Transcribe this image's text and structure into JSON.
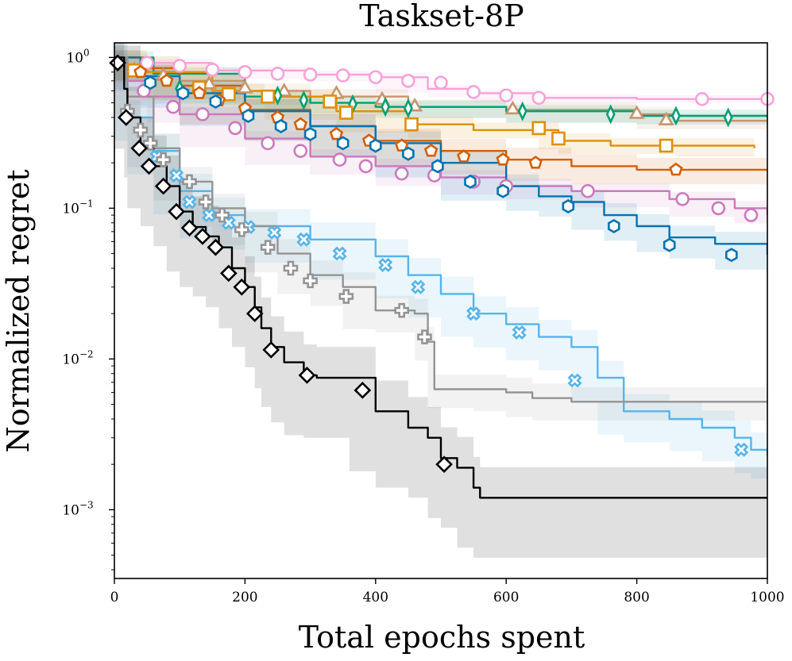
{
  "chart_data": {
    "type": "line",
    "title": "Taskset-8P",
    "xlabel": "Total epochs spent",
    "ylabel": "Normalized regret",
    "xlim": [
      0,
      1000
    ],
    "ylim": [
      0.00035,
      1.25
    ],
    "yscale": "log",
    "x_ticks": [
      0,
      200,
      400,
      600,
      800,
      1000
    ],
    "x_tick_labels": [
      "0",
      "200",
      "400",
      "600",
      "800",
      "1000"
    ],
    "y_ticks": [
      1,
      0.1,
      0.01,
      0.001
    ],
    "y_tick_labels": [
      {
        "base": "10",
        "exp": "0"
      },
      {
        "base": "10",
        "exp": "−1"
      },
      {
        "base": "10",
        "exp": "−2"
      },
      {
        "base": "10",
        "exp": "−3"
      }
    ],
    "legend": "none",
    "grid": false,
    "series": [
      {
        "name": "pink-circle",
        "color": "#f7a1d8",
        "marker": "circle",
        "band": 0.06,
        "points": [
          [
            0,
            1.0
          ],
          [
            50,
            0.92
          ],
          [
            150,
            0.82
          ],
          [
            300,
            0.77
          ],
          [
            400,
            0.74
          ],
          [
            480,
            0.62
          ],
          [
            550,
            0.58
          ],
          [
            650,
            0.54
          ],
          [
            800,
            0.53
          ],
          [
            1000,
            0.53
          ]
        ],
        "markers": [
          [
            50,
            0.92
          ],
          [
            100,
            0.88
          ],
          [
            150,
            0.83
          ],
          [
            200,
            0.8
          ],
          [
            250,
            0.78
          ],
          [
            300,
            0.77
          ],
          [
            350,
            0.76
          ],
          [
            400,
            0.74
          ],
          [
            450,
            0.7
          ],
          [
            500,
            0.68
          ],
          [
            550,
            0.59
          ],
          [
            600,
            0.56
          ],
          [
            650,
            0.54
          ],
          [
            900,
            0.53
          ],
          [
            1000,
            0.53
          ]
        ]
      },
      {
        "name": "brown-triangle",
        "color": "#c7946d",
        "marker": "triangle",
        "band": 0.12,
        "points": [
          [
            0,
            1.0
          ],
          [
            40,
            0.8
          ],
          [
            100,
            0.7
          ],
          [
            200,
            0.6
          ],
          [
            300,
            0.55
          ],
          [
            450,
            0.47
          ],
          [
            600,
            0.45
          ],
          [
            800,
            0.42
          ],
          [
            860,
            0.38
          ],
          [
            1000,
            0.38
          ]
        ],
        "markers": [
          [
            30,
            0.82
          ],
          [
            75,
            0.75
          ],
          [
            145,
            0.66
          ],
          [
            200,
            0.62
          ],
          [
            260,
            0.59
          ],
          [
            340,
            0.57
          ],
          [
            410,
            0.52
          ],
          [
            460,
            0.47
          ],
          [
            610,
            0.45
          ],
          [
            800,
            0.42
          ],
          [
            845,
            0.38
          ]
        ]
      },
      {
        "name": "green-diamond",
        "color": "#029e73",
        "marker": "thin-diamond",
        "band": 0.1,
        "points": [
          [
            0,
            1.0
          ],
          [
            60,
            0.78
          ],
          [
            200,
            0.55
          ],
          [
            300,
            0.5
          ],
          [
            400,
            0.47
          ],
          [
            600,
            0.44
          ],
          [
            800,
            0.41
          ],
          [
            1000,
            0.4
          ]
        ],
        "markers": [
          [
            100,
            0.62
          ],
          [
            250,
            0.56
          ],
          [
            290,
            0.52
          ],
          [
            365,
            0.49
          ],
          [
            415,
            0.47
          ],
          [
            450,
            0.46
          ],
          [
            625,
            0.44
          ],
          [
            760,
            0.42
          ],
          [
            860,
            0.41
          ],
          [
            940,
            0.4
          ]
        ]
      },
      {
        "name": "orange-square",
        "color": "#de8f05",
        "marker": "square",
        "band": 0.12,
        "points": [
          [
            0,
            1.0
          ],
          [
            50,
            0.8
          ],
          [
            150,
            0.6
          ],
          [
            230,
            0.55
          ],
          [
            340,
            0.44
          ],
          [
            450,
            0.36
          ],
          [
            550,
            0.33
          ],
          [
            650,
            0.33
          ],
          [
            680,
            0.28
          ],
          [
            760,
            0.26
          ],
          [
            860,
            0.26
          ],
          [
            980,
            0.25
          ]
        ],
        "markers": [
          [
            30,
            0.82
          ],
          [
            130,
            0.63
          ],
          [
            175,
            0.57
          ],
          [
            235,
            0.55
          ],
          [
            330,
            0.51
          ],
          [
            355,
            0.43
          ],
          [
            455,
            0.36
          ],
          [
            650,
            0.34
          ],
          [
            680,
            0.29
          ],
          [
            845,
            0.26
          ]
        ]
      },
      {
        "name": "red-pentagon",
        "color": "#d55e00",
        "marker": "pentagon",
        "band": 0.2,
        "points": [
          [
            0,
            1.0
          ],
          [
            40,
            0.85
          ],
          [
            100,
            0.65
          ],
          [
            200,
            0.45
          ],
          [
            300,
            0.35
          ],
          [
            400,
            0.28
          ],
          [
            500,
            0.24
          ],
          [
            600,
            0.21
          ],
          [
            700,
            0.19
          ],
          [
            800,
            0.18
          ],
          [
            1000,
            0.18
          ]
        ],
        "markers": [
          [
            40,
            0.8
          ],
          [
            80,
            0.7
          ],
          [
            130,
            0.58
          ],
          [
            160,
            0.52
          ],
          [
            200,
            0.46
          ],
          [
            250,
            0.4
          ],
          [
            285,
            0.36
          ],
          [
            340,
            0.31
          ],
          [
            390,
            0.28
          ],
          [
            440,
            0.26
          ],
          [
            485,
            0.24
          ],
          [
            535,
            0.22
          ],
          [
            595,
            0.21
          ],
          [
            645,
            0.2
          ],
          [
            860,
            0.18
          ]
        ]
      },
      {
        "name": "magenta-circle",
        "color": "#cc78bc",
        "marker": "circle",
        "band": 0.12,
        "points": [
          [
            0,
            1.0
          ],
          [
            20,
            0.7
          ],
          [
            50,
            0.55
          ],
          [
            100,
            0.42
          ],
          [
            200,
            0.29
          ],
          [
            300,
            0.22
          ],
          [
            400,
            0.19
          ],
          [
            500,
            0.16
          ],
          [
            600,
            0.14
          ],
          [
            700,
            0.13
          ],
          [
            850,
            0.115
          ],
          [
            950,
            0.1
          ],
          [
            1000,
            0.09
          ]
        ],
        "markers": [
          [
            45,
            0.6
          ],
          [
            90,
            0.47
          ],
          [
            135,
            0.42
          ],
          [
            185,
            0.34
          ],
          [
            235,
            0.27
          ],
          [
            285,
            0.24
          ],
          [
            345,
            0.21
          ],
          [
            385,
            0.19
          ],
          [
            440,
            0.17
          ],
          [
            490,
            0.165
          ],
          [
            550,
            0.15
          ],
          [
            600,
            0.14
          ],
          [
            725,
            0.13
          ],
          [
            870,
            0.115
          ],
          [
            925,
            0.1
          ],
          [
            975,
            0.09
          ]
        ]
      },
      {
        "name": "blue-hexagon",
        "color": "#0173b2",
        "marker": "hexagon",
        "band": 0.2,
        "points": [
          [
            0,
            1.0
          ],
          [
            40,
            0.75
          ],
          [
            100,
            0.58
          ],
          [
            200,
            0.44
          ],
          [
            300,
            0.35
          ],
          [
            400,
            0.27
          ],
          [
            500,
            0.2
          ],
          [
            600,
            0.14
          ],
          [
            650,
            0.12
          ],
          [
            700,
            0.11
          ],
          [
            750,
            0.09
          ],
          [
            800,
            0.076
          ],
          [
            850,
            0.064
          ],
          [
            920,
            0.058
          ],
          [
            1000,
            0.049
          ]
        ],
        "markers": [
          [
            55,
            0.68
          ],
          [
            105,
            0.58
          ],
          [
            155,
            0.51
          ],
          [
            205,
            0.41
          ],
          [
            255,
            0.35
          ],
          [
            300,
            0.31
          ],
          [
            350,
            0.27
          ],
          [
            400,
            0.26
          ],
          [
            450,
            0.23
          ],
          [
            495,
            0.19
          ],
          [
            545,
            0.15
          ],
          [
            595,
            0.13
          ],
          [
            695,
            0.103
          ],
          [
            765,
            0.076
          ],
          [
            850,
            0.057
          ],
          [
            945,
            0.049
          ]
        ]
      },
      {
        "name": "lightblue-x",
        "color": "#56b4e9",
        "marker": "x",
        "band": 0.3,
        "points": [
          [
            0,
            1.0
          ],
          [
            20,
            0.4
          ],
          [
            60,
            0.24
          ],
          [
            100,
            0.13
          ],
          [
            150,
            0.09
          ],
          [
            200,
            0.076
          ],
          [
            300,
            0.062
          ],
          [
            400,
            0.048
          ],
          [
            450,
            0.036
          ],
          [
            500,
            0.027
          ],
          [
            550,
            0.02
          ],
          [
            600,
            0.017
          ],
          [
            650,
            0.014
          ],
          [
            700,
            0.012
          ],
          [
            740,
            0.0075
          ],
          [
            780,
            0.0045
          ],
          [
            850,
            0.004
          ],
          [
            900,
            0.0035
          ],
          [
            950,
            0.003
          ],
          [
            975,
            0.0025
          ],
          [
            1000,
            0.0023
          ]
        ],
        "markers": [
          [
            65,
            0.22
          ],
          [
            95,
            0.165
          ],
          [
            115,
            0.11
          ],
          [
            145,
            0.09
          ],
          [
            175,
            0.08
          ],
          [
            205,
            0.075
          ],
          [
            245,
            0.069
          ],
          [
            290,
            0.062
          ],
          [
            345,
            0.05
          ],
          [
            415,
            0.042
          ],
          [
            465,
            0.03
          ],
          [
            550,
            0.02
          ],
          [
            620,
            0.015
          ],
          [
            705,
            0.0072
          ],
          [
            960,
            0.0025
          ]
        ]
      },
      {
        "name": "gray-plus",
        "color": "#949494",
        "marker": "plus",
        "band": 0.25,
        "points": [
          [
            0,
            1.0
          ],
          [
            20,
            0.55
          ],
          [
            60,
            0.25
          ],
          [
            100,
            0.15
          ],
          [
            150,
            0.1
          ],
          [
            200,
            0.076
          ],
          [
            250,
            0.05
          ],
          [
            300,
            0.036
          ],
          [
            350,
            0.03
          ],
          [
            400,
            0.021
          ],
          [
            460,
            0.02
          ],
          [
            480,
            0.013
          ],
          [
            490,
            0.0063
          ],
          [
            550,
            0.0063
          ],
          [
            600,
            0.006
          ],
          [
            640,
            0.0055
          ],
          [
            700,
            0.0052
          ],
          [
            1000,
            0.0052
          ]
        ],
        "markers": [
          [
            20,
            0.44
          ],
          [
            40,
            0.33
          ],
          [
            55,
            0.27
          ],
          [
            75,
            0.21
          ],
          [
            115,
            0.15
          ],
          [
            140,
            0.11
          ],
          [
            165,
            0.09
          ],
          [
            195,
            0.072
          ],
          [
            235,
            0.055
          ],
          [
            270,
            0.04
          ],
          [
            300,
            0.033
          ],
          [
            355,
            0.026
          ],
          [
            440,
            0.021
          ],
          [
            475,
            0.014
          ]
        ]
      },
      {
        "name": "black-diamond",
        "color": "#000000",
        "marker": "diamond",
        "band": 0.6,
        "points": [
          [
            0,
            1.0
          ],
          [
            15,
            0.62
          ],
          [
            20,
            0.4
          ],
          [
            40,
            0.25
          ],
          [
            60,
            0.19
          ],
          [
            80,
            0.14
          ],
          [
            100,
            0.095
          ],
          [
            120,
            0.075
          ],
          [
            140,
            0.065
          ],
          [
            160,
            0.055
          ],
          [
            180,
            0.04
          ],
          [
            200,
            0.03
          ],
          [
            215,
            0.022
          ],
          [
            225,
            0.016
          ],
          [
            240,
            0.012
          ],
          [
            260,
            0.0095
          ],
          [
            290,
            0.0078
          ],
          [
            310,
            0.0075
          ],
          [
            360,
            0.0075
          ],
          [
            400,
            0.0045
          ],
          [
            450,
            0.0035
          ],
          [
            480,
            0.003
          ],
          [
            500,
            0.0022
          ],
          [
            525,
            0.0019
          ],
          [
            550,
            0.0014
          ],
          [
            560,
            0.0012
          ],
          [
            1000,
            0.0012
          ]
        ],
        "markers": [
          [
            5,
            0.92
          ],
          [
            18,
            0.4
          ],
          [
            38,
            0.25
          ],
          [
            53,
            0.19
          ],
          [
            75,
            0.14
          ],
          [
            95,
            0.095
          ],
          [
            115,
            0.074
          ],
          [
            135,
            0.065
          ],
          [
            155,
            0.055
          ],
          [
            175,
            0.037
          ],
          [
            195,
            0.03
          ],
          [
            215,
            0.02
          ],
          [
            240,
            0.0115
          ],
          [
            295,
            0.0078
          ],
          [
            380,
            0.0062
          ],
          [
            505,
            0.002
          ]
        ]
      }
    ]
  }
}
